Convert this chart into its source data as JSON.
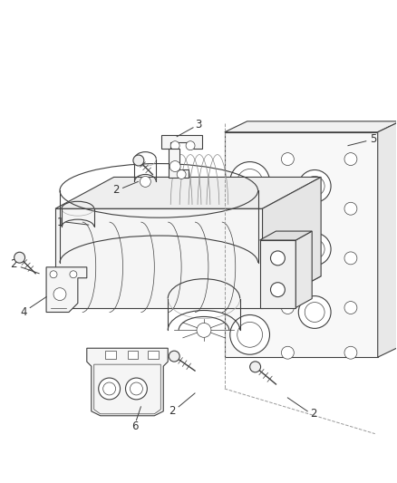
{
  "background_color": "#ffffff",
  "line_color": "#404040",
  "label_color": "#333333",
  "fig_width": 4.38,
  "fig_height": 5.33,
  "dpi": 100,
  "label_fontsize": 8.5
}
